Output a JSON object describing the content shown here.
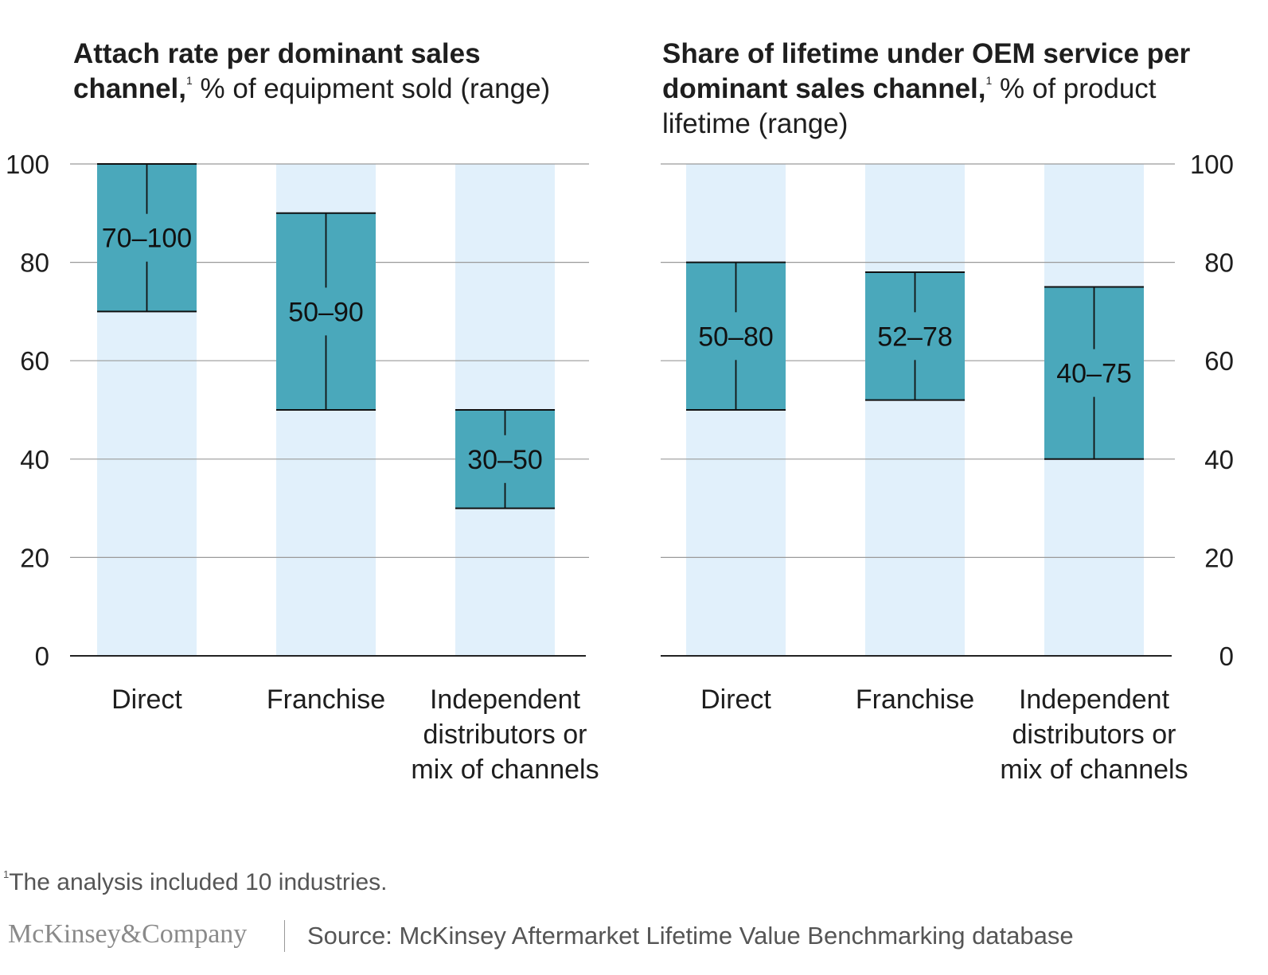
{
  "chart_data": [
    {
      "type": "range-bar",
      "title_bold": "Attach rate per dominant sales channel,",
      "title_sup": "1",
      "title_rest": " % of equipment sold (range)",
      "ylim": [
        0,
        100
      ],
      "yticks": [
        0,
        20,
        40,
        60,
        80,
        100
      ],
      "y_axis_side": "left",
      "categories": [
        "Direct",
        "Franchise",
        "Independent distributors or mix of channels"
      ],
      "category_lines": [
        [
          "Direct"
        ],
        [
          "Franchise"
        ],
        [
          "Independent",
          "distributors or",
          "mix of channels"
        ]
      ],
      "ranges": [
        {
          "low": 70,
          "high": 100,
          "label": "70–100"
        },
        {
          "low": 50,
          "high": 90,
          "label": "50–90"
        },
        {
          "low": 30,
          "high": 50,
          "label": "30–50"
        }
      ]
    },
    {
      "type": "range-bar",
      "title_bold": "Share of lifetime under OEM service per dominant sales channel,",
      "title_sup": "1",
      "title_rest": " % of product lifetime (range)",
      "ylim": [
        0,
        100
      ],
      "yticks": [
        0,
        20,
        40,
        60,
        80,
        100
      ],
      "y_axis_side": "right",
      "categories": [
        "Direct",
        "Franchise",
        "Independent distributors or mix of channels"
      ],
      "category_lines": [
        [
          "Direct"
        ],
        [
          "Franchise"
        ],
        [
          "Independent",
          "distributors or",
          "mix of channels"
        ]
      ],
      "ranges": [
        {
          "low": 50,
          "high": 80,
          "label": "50–80"
        },
        {
          "low": 52,
          "high": 78,
          "label": "52–78"
        },
        {
          "low": 40,
          "high": 75,
          "label": "40–75"
        }
      ]
    }
  ],
  "colors": {
    "range_fill": "#4aa8bb",
    "column_bg": "#e1f0fb",
    "grid": "#9a9a9a",
    "baseline": "#222222",
    "text": "#1e1e1e"
  },
  "footnote": {
    "marker": "1",
    "text": "The analysis included 10 industries."
  },
  "brand": "McKinsey&Company",
  "source": "Source: McKinsey Aftermarket Lifetime Value Benchmarking database"
}
